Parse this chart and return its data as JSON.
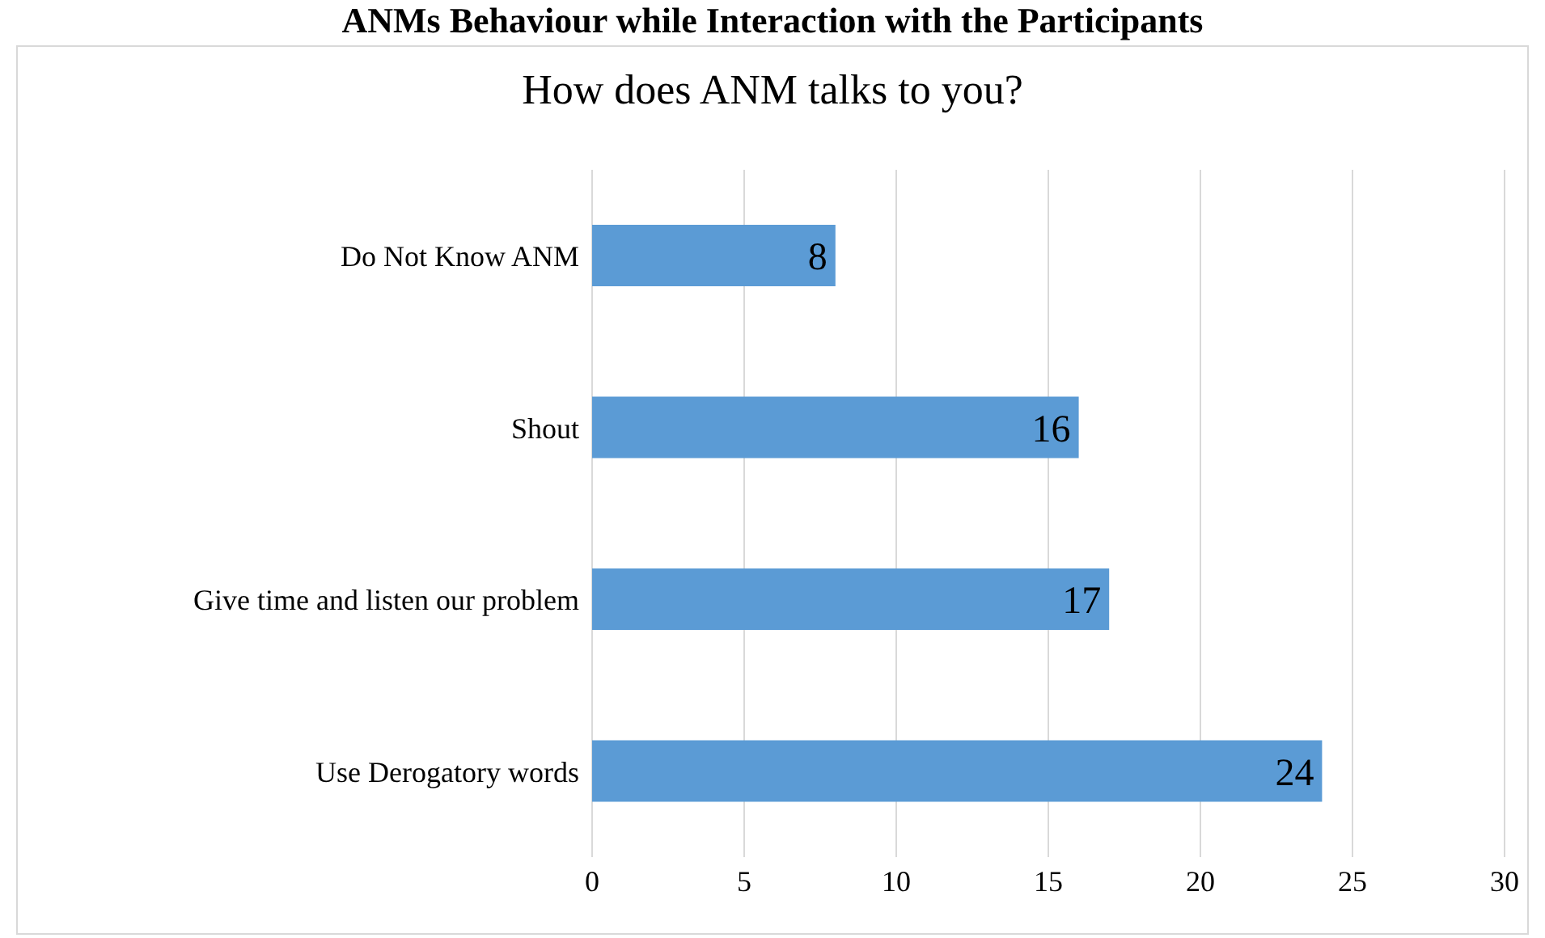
{
  "chart_data": {
    "type": "bar",
    "orientation": "horizontal",
    "title": "ANMs Behaviour while Interaction with the Participants",
    "subtitle": "How does ANM talks to you?",
    "categories": [
      "Do Not Know ANM",
      "Shout",
      "Give time and listen our problem",
      "Use Derogatory words"
    ],
    "values": [
      8,
      16,
      17,
      24
    ],
    "color": "#5b9bd5",
    "xlim": [
      0,
      30
    ],
    "xticks": [
      0,
      5,
      10,
      15,
      20,
      25,
      30
    ],
    "grid": "x",
    "data_labels": true
  }
}
